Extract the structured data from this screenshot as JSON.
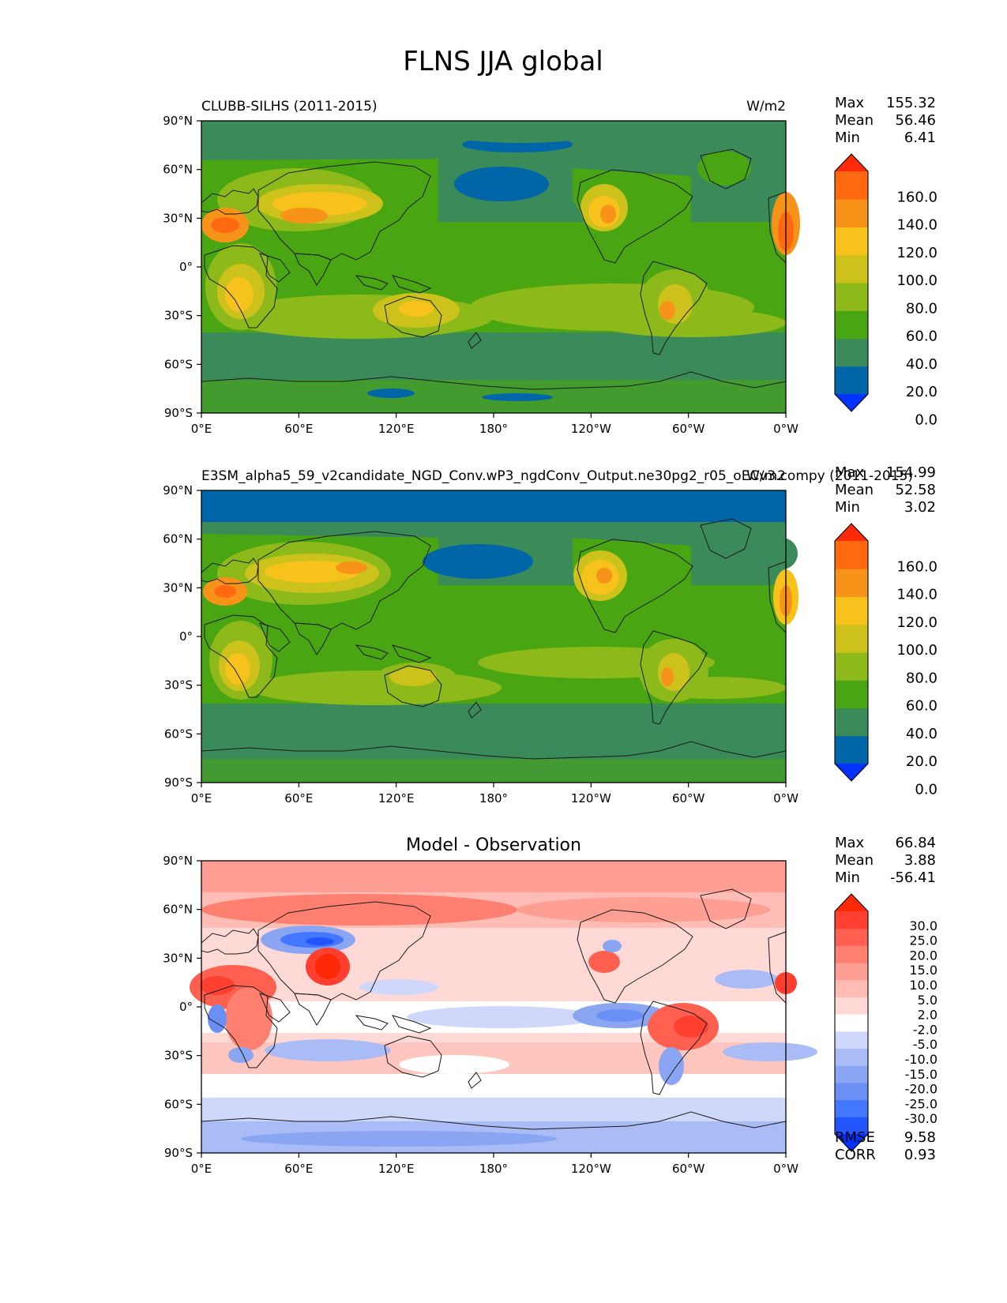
{
  "figure": {
    "title": "FLNS JJA global"
  },
  "axes": {
    "x_ticks": [
      "0°E",
      "60°E",
      "120°E",
      "180°",
      "120°W",
      "60°W",
      "0°W"
    ],
    "y_ticks": [
      "90°N",
      "60°N",
      "30°N",
      "0°",
      "30°S",
      "60°S",
      "90°S"
    ]
  },
  "panels": [
    {
      "id": "reference",
      "title": "",
      "left_label": "CLUBB-SILHS (2011-2015)",
      "right_label": "W/m2",
      "stats": [
        {
          "label": "Max",
          "value": "155.32"
        },
        {
          "label": "Mean",
          "value": "56.46"
        },
        {
          "label": "Min",
          "value": "6.41"
        }
      ],
      "colorbar": {
        "labels": [
          "160.0",
          "140.0",
          "120.0",
          "100.0",
          "80.0",
          "60.0",
          "40.0",
          "20.0",
          "0.0"
        ],
        "colors": [
          "#0033ff",
          "#0066a8",
          "#3a8a5a",
          "#4aa512",
          "#8db91b",
          "#cdc21c",
          "#f8c21d",
          "#f8931a",
          "#ff6a10",
          "#ff2a0a"
        ]
      },
      "bottom_stats": []
    },
    {
      "id": "test",
      "title": "",
      "left_label": "E3SM_alpha5_59_v2candidate_NGD_Conv.wP3_ngdConv_Output.ne30pg2_r05_oECv3.compy (2011-2015)",
      "right_label": "W/m2",
      "stats": [
        {
          "label": "Max",
          "value": "154.99"
        },
        {
          "label": "Mean",
          "value": "52.58"
        },
        {
          "label": "Min",
          "value": "3.02"
        }
      ],
      "colorbar": {
        "labels": [
          "160.0",
          "140.0",
          "120.0",
          "100.0",
          "80.0",
          "60.0",
          "40.0",
          "20.0",
          "0.0"
        ],
        "colors": [
          "#0033ff",
          "#0066a8",
          "#3a8a5a",
          "#4aa512",
          "#8db91b",
          "#cdc21c",
          "#f8c21d",
          "#f8931a",
          "#ff6a10",
          "#ff2a0a"
        ]
      },
      "bottom_stats": []
    },
    {
      "id": "diff",
      "title": "Model - Observation",
      "left_label": "",
      "right_label": "",
      "stats": [
        {
          "label": "Max",
          "value": "66.84"
        },
        {
          "label": "Mean",
          "value": "3.88"
        },
        {
          "label": "Min",
          "value": "-56.41"
        }
      ],
      "colorbar": {
        "labels": [
          "30.0",
          "25.0",
          "20.0",
          "15.0",
          "10.0",
          "5.0",
          "2.0",
          "-2.0",
          "-5.0",
          "-10.0",
          "-15.0",
          "-20.0",
          "-25.0",
          "-30.0"
        ],
        "colors": [
          "#0033ff",
          "#2255ff",
          "#4477ff",
          "#6a90f5",
          "#8aa6f3",
          "#aabcf5",
          "#cfd8fa",
          "#ffffff",
          "#ffd9d6",
          "#ffbdb5",
          "#ff9f94",
          "#ff8070",
          "#ff6050",
          "#ff4030",
          "#ff2808"
        ]
      },
      "bottom_stats": [
        {
          "label": "RMSE",
          "value": "9.58"
        },
        {
          "label": "CORR",
          "value": "0.93"
        }
      ]
    }
  ]
}
